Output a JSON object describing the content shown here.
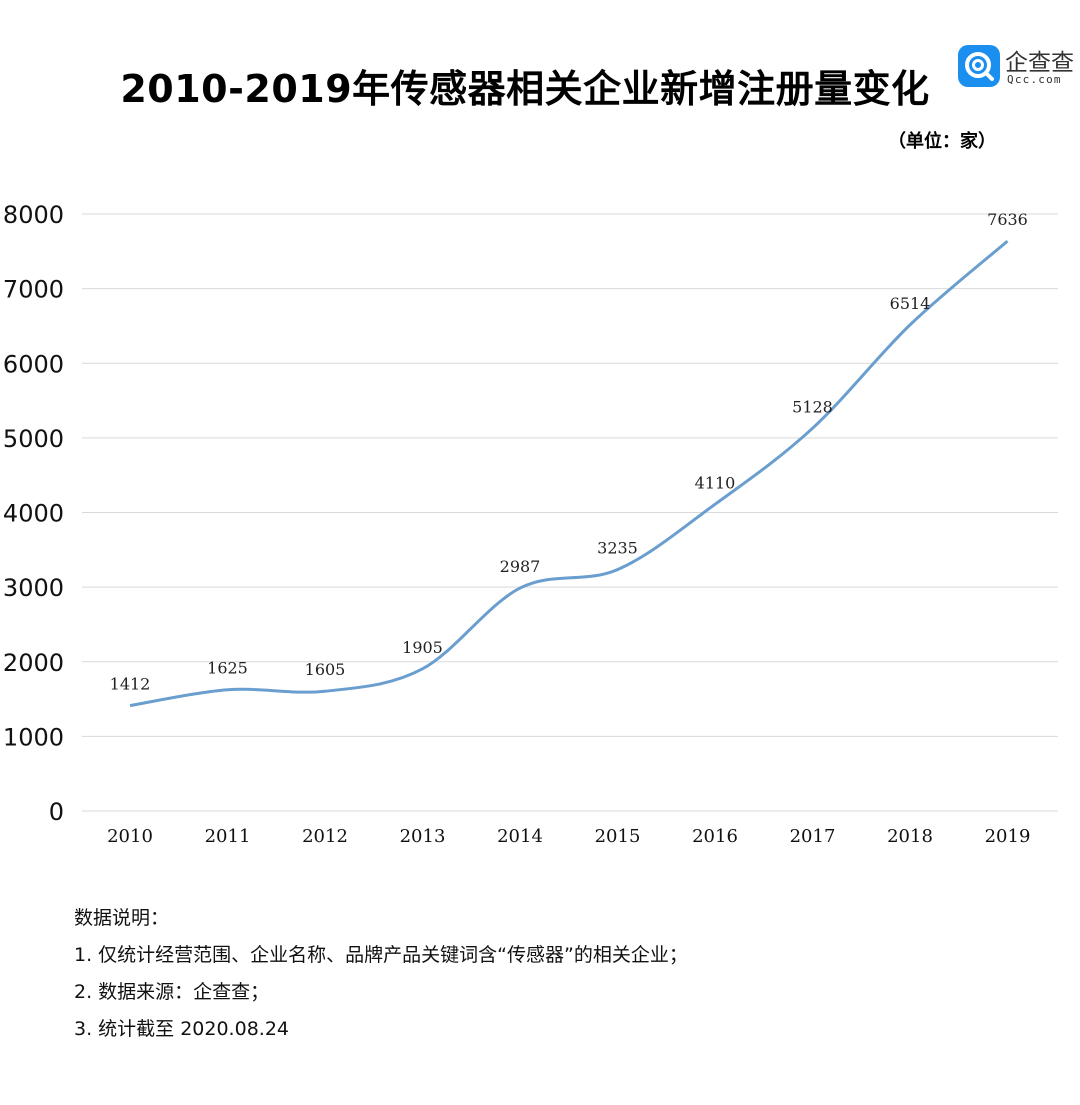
{
  "title": "2010-2019年传感器相关企业新增注册量变化",
  "logo": {
    "name": "企查查",
    "domain": "Qcc.com"
  },
  "unit_label": "（单位：家）",
  "colors": {
    "line": "#6a9ecf",
    "grid": "#d9d9d9",
    "logo": "#1a8ff0"
  },
  "chart_data": {
    "type": "line",
    "categories": [
      "2010",
      "2011",
      "2012",
      "2013",
      "2014",
      "2015",
      "2016",
      "2017",
      "2018",
      "2019"
    ],
    "values": [
      1412,
      1625,
      1605,
      1905,
      2987,
      3235,
      4110,
      5128,
      6514,
      7636
    ],
    "ylim": [
      0,
      8000
    ],
    "yticks": [
      0,
      1000,
      2000,
      3000,
      4000,
      5000,
      6000,
      7000,
      8000
    ],
    "smooth": true,
    "grid": "horizontal",
    "data_labels": true
  },
  "notes": {
    "heading": "数据说明：",
    "items": [
      "1. 仅统计经营范围、企业名称、品牌产品关键词含“传感器”的相关企业；",
      "2. 数据来源：企查查；",
      "3. 统计截至 2020.08.24"
    ]
  }
}
